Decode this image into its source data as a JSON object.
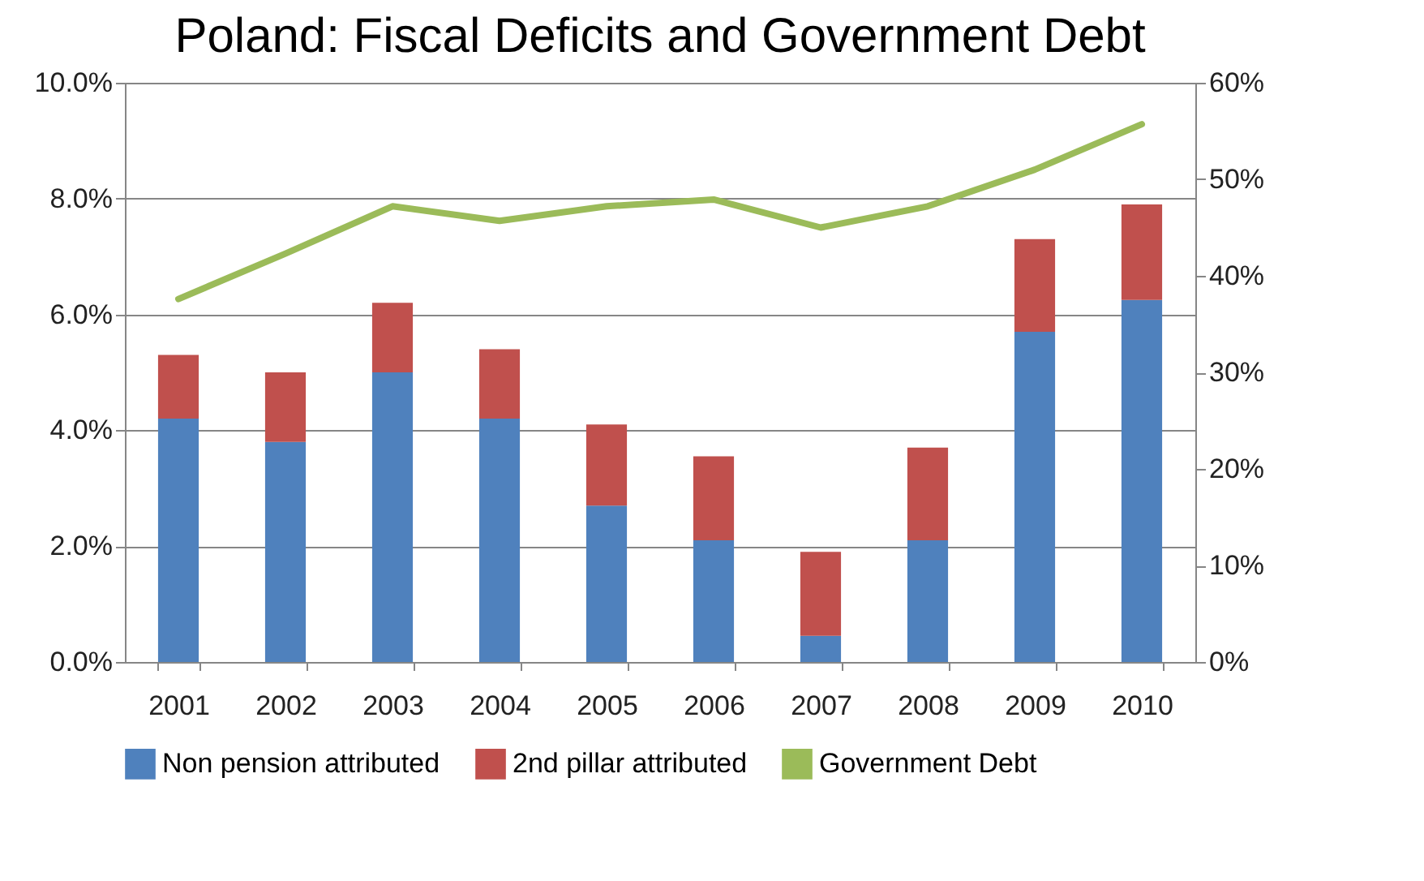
{
  "chart_data": {
    "type": "bar",
    "title": "Poland: Fiscal Deficits and Government Debt",
    "stacked": true,
    "categories": [
      "2001",
      "2002",
      "2003",
      "2004",
      "2005",
      "2006",
      "2007",
      "2008",
      "2009",
      "2010"
    ],
    "series": [
      {
        "name": "Non pension attributed",
        "color": "#4f81bd",
        "values": [
          4.2,
          3.8,
          5.0,
          4.2,
          2.7,
          2.1,
          0.45,
          2.1,
          5.7,
          6.25
        ]
      },
      {
        "name": "2nd pillar attributed",
        "color": "#c0504d",
        "values": [
          1.1,
          1.2,
          1.2,
          1.2,
          1.4,
          1.45,
          1.45,
          1.6,
          1.6,
          1.65
        ]
      },
      {
        "name": "Government Debt",
        "type": "line",
        "axis": "y2",
        "color": "#9bbb59",
        "values": [
          37.6,
          42.3,
          47.2,
          45.7,
          47.2,
          47.9,
          45.0,
          47.2,
          51.0,
          55.7
        ]
      }
    ],
    "ylim": [
      0,
      10
    ],
    "yticks": [
      {
        "value": 0,
        "label": "0.0%"
      },
      {
        "value": 2,
        "label": "2.0%"
      },
      {
        "value": 4,
        "label": "4.0%"
      },
      {
        "value": 6,
        "label": "6.0%"
      },
      {
        "value": 8,
        "label": "8.0%"
      },
      {
        "value": 10,
        "label": "10.0%"
      }
    ],
    "y2lim": [
      0,
      60
    ],
    "y2ticks": [
      {
        "value": 0,
        "label": "0%"
      },
      {
        "value": 10,
        "label": "10%"
      },
      {
        "value": 20,
        "label": "20%"
      },
      {
        "value": 30,
        "label": "30%"
      },
      {
        "value": 40,
        "label": "40%"
      },
      {
        "value": 50,
        "label": "50%"
      },
      {
        "value": 60,
        "label": "60%"
      }
    ],
    "grid": "y",
    "legend": "bottom",
    "marker": "none",
    "line_style": "solid"
  }
}
